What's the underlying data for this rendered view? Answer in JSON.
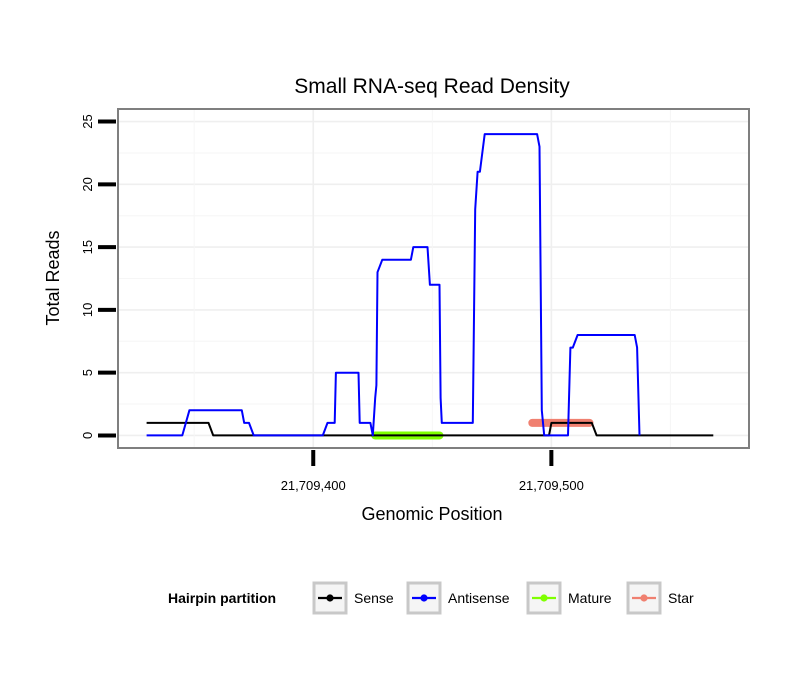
{
  "chart_data": {
    "type": "line",
    "title": "Small RNA-seq Read Density",
    "xlabel": "Genomic Position",
    "ylabel": "Total Reads",
    "xlim": [
      21709318,
      21709583
    ],
    "ylim": [
      -1,
      26
    ],
    "x_ticks": [
      {
        "value": 21709400,
        "label": "21,709,400"
      },
      {
        "value": 21709500,
        "label": "21,709,500"
      }
    ],
    "y_ticks": [
      {
        "value": 0,
        "label": "0"
      },
      {
        "value": 5,
        "label": "5"
      },
      {
        "value": 10,
        "label": "10"
      },
      {
        "value": 15,
        "label": "15"
      },
      {
        "value": 20,
        "label": "20"
      },
      {
        "value": 25,
        "label": "25"
      }
    ],
    "grid": true,
    "legend": {
      "title": "Hairpin partition",
      "position": "bottom",
      "entries": [
        {
          "name": "Sense",
          "color": "#000000"
        },
        {
          "name": "Antisense",
          "color": "#0000ff"
        },
        {
          "name": "Mature",
          "color": "#7fff00"
        },
        {
          "name": "Star",
          "color": "#f08070"
        }
      ]
    },
    "series": [
      {
        "name": "Sense",
        "color": "#000000",
        "x": [
          21709330,
          21709356,
          21709358,
          21709499,
          21709500,
          21709517,
          21709519,
          21709568
        ],
        "y": [
          1,
          1,
          0,
          0,
          1,
          1,
          0,
          0
        ]
      },
      {
        "name": "Antisense",
        "color": "#0000ff",
        "x": [
          21709330,
          21709345,
          21709348,
          21709370,
          21709371,
          21709373,
          21709375,
          21709404,
          21709406,
          21709409,
          21709409.5,
          21709419,
          21709419.5,
          21709424,
          21709425,
          21709426,
          21709426.5,
          21709427,
          21709429,
          21709441,
          21709442,
          21709448,
          21709449,
          21709453,
          21709453.5,
          21709454,
          21709455,
          21709467,
          21709468,
          21709469,
          21709470,
          21709472,
          21709494,
          21709495,
          21709496,
          21709497,
          21709507,
          21709508,
          21709509,
          21709511,
          21709535,
          21709536,
          21709537
        ],
        "y": [
          0,
          0,
          2,
          2,
          1,
          1,
          0,
          0,
          1,
          1,
          5,
          5,
          1,
          1,
          0,
          3,
          4,
          13,
          14,
          14,
          15,
          15,
          12,
          12,
          3,
          1,
          1,
          1,
          18,
          21,
          21,
          24,
          24,
          23,
          2,
          0,
          0,
          7,
          7,
          8,
          8,
          7,
          0
        ]
      }
    ],
    "segments": [
      {
        "name": "Mature",
        "color": "#7fff00",
        "x_start": 21709426,
        "x_end": 21709453,
        "y": 0
      },
      {
        "name": "Star",
        "color": "#f08070",
        "x_start": 21709492,
        "x_end": 21709516,
        "y": 1
      }
    ]
  }
}
